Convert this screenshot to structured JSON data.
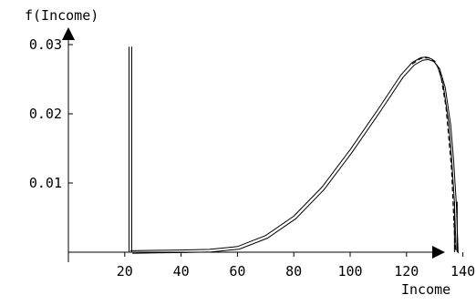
{
  "chart_data": {
    "type": "line",
    "title": "",
    "xlabel": "Income",
    "ylabel": "f(Income)",
    "xlim": [
      0,
      150
    ],
    "ylim": [
      0,
      0.033
    ],
    "x_ticks": [
      20,
      40,
      60,
      80,
      100,
      120,
      140
    ],
    "x_tick_labels": [
      "20",
      "40",
      "60",
      "80",
      "100",
      "120",
      "140"
    ],
    "y_ticks": [
      0.01,
      0.02,
      0.03
    ],
    "y_tick_labels": [
      "0.01",
      "0.02",
      "0.03"
    ],
    "grid": false,
    "legend": false,
    "series": [
      {
        "style": "double-line",
        "x": [
          22,
          30,
          40,
          50,
          60,
          70,
          80,
          90,
          100,
          110,
          118,
          122,
          125,
          127,
          129,
          131,
          133,
          135,
          136,
          137,
          137.6
        ],
        "y": [
          0.0,
          5e-05,
          0.0001,
          0.0002,
          0.0006,
          0.0022,
          0.005,
          0.0092,
          0.0146,
          0.0205,
          0.0254,
          0.0272,
          0.0279,
          0.028,
          0.0277,
          0.0267,
          0.024,
          0.0185,
          0.0135,
          0.007,
          0.0
        ]
      },
      {
        "style": "dashed",
        "x": [
          122,
          125,
          128,
          130,
          132,
          134,
          136,
          137.3
        ],
        "y": [
          0.0272,
          0.028,
          0.0281,
          0.0276,
          0.026,
          0.021,
          0.012,
          0.0
        ]
      }
    ],
    "annotations": [
      {
        "type": "vertical-bar",
        "x": 22,
        "y_top": 0.0297
      },
      {
        "type": "vertical-bar",
        "x": 137.5,
        "y_top": 0.0073
      }
    ],
    "colors": {
      "line": "#000000",
      "background": "#ffffff"
    }
  }
}
